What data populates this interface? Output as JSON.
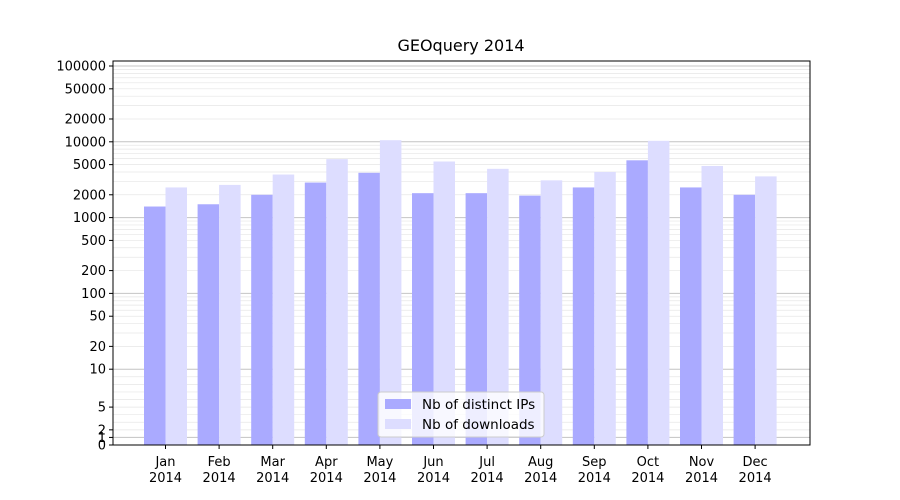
{
  "chart_data": {
    "type": "bar",
    "title": "GEOquery 2014",
    "xlabel": "",
    "ylabel": "",
    "yscale": "symlog",
    "ylim": [
      0,
      120000
    ],
    "grid": true,
    "legend_position": "bottom-center",
    "categories": [
      [
        "Jan",
        "2014"
      ],
      [
        "Feb",
        "2014"
      ],
      [
        "Mar",
        "2014"
      ],
      [
        "Apr",
        "2014"
      ],
      [
        "May",
        "2014"
      ],
      [
        "Jun",
        "2014"
      ],
      [
        "Jul",
        "2014"
      ],
      [
        "Aug",
        "2014"
      ],
      [
        "Sep",
        "2014"
      ],
      [
        "Oct",
        "2014"
      ],
      [
        "Nov",
        "2014"
      ],
      [
        "Dec",
        "2014"
      ]
    ],
    "yticks": [
      {
        "value": 0,
        "label": "0"
      },
      {
        "value": 1,
        "label": "1"
      },
      {
        "value": 2,
        "label": "2"
      },
      {
        "value": 5,
        "label": "5"
      },
      {
        "value": 10,
        "label": "10"
      },
      {
        "value": 20,
        "label": "20"
      },
      {
        "value": 50,
        "label": "50"
      },
      {
        "value": 100,
        "label": "100"
      },
      {
        "value": 200,
        "label": "200"
      },
      {
        "value": 500,
        "label": "500"
      },
      {
        "value": 1000,
        "label": "1000"
      },
      {
        "value": 2000,
        "label": "2000"
      },
      {
        "value": 5000,
        "label": "5000"
      },
      {
        "value": 10000,
        "label": "10000"
      },
      {
        "value": 20000,
        "label": "20000"
      },
      {
        "value": 50000,
        "label": "50000"
      },
      {
        "value": 100000,
        "label": "100000"
      }
    ],
    "series": [
      {
        "name": "Nb of distinct IPs",
        "color": "#aaaaff",
        "values": [
          1400,
          1500,
          2000,
          2900,
          3900,
          2100,
          2100,
          1950,
          2500,
          5700,
          2500,
          2000
        ]
      },
      {
        "name": "Nb of downloads",
        "color": "#ddddff",
        "values": [
          2500,
          2700,
          3700,
          5900,
          10500,
          5500,
          4400,
          3100,
          4000,
          10300,
          4800,
          3500
        ]
      }
    ]
  }
}
